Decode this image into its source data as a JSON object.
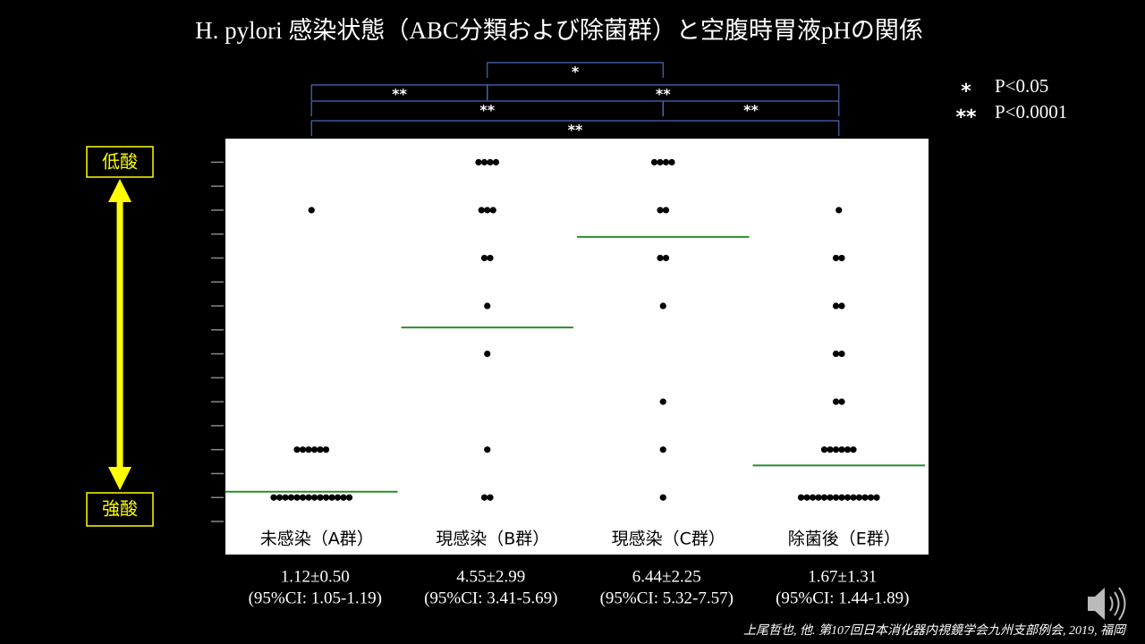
{
  "chart_data": {
    "type": "strip",
    "title": "H. pylori 感染状態（ABC分類および除菌群）と空腹時胃液pHの関係",
    "y_axis_labels": {
      "top": "低酸",
      "bottom": "強酸"
    },
    "ylim": [
      0.5,
      8.5
    ],
    "yticks": [
      0.5,
      1,
      1.5,
      2,
      2.5,
      3,
      3.5,
      4,
      4.5,
      5,
      5.5,
      6,
      6.5,
      7,
      7.5,
      8
    ],
    "point_color": "#000000",
    "mean_color": "#2e8b2e",
    "groups": [
      {
        "name": "未感染（A群）",
        "values": [
          7,
          2,
          2,
          2,
          2,
          2,
          2,
          1,
          1,
          1,
          1,
          1,
          1,
          1,
          1,
          1,
          1,
          1,
          1,
          1,
          1
        ],
        "mean": 1.12,
        "mean_label": "1.12±0.50",
        "ci_label": "(95%CI: 1.05-1.19)"
      },
      {
        "name": "現感染（B群）",
        "values": [
          8,
          8,
          8,
          8,
          7,
          7,
          7,
          6,
          6,
          5,
          4,
          2,
          1,
          1
        ],
        "mean": 4.55,
        "mean_label": "4.55±2.99",
        "ci_label": "(95%CI: 3.41-5.69)"
      },
      {
        "name": "現感染（C群）",
        "values": [
          8,
          8,
          8,
          8,
          7,
          7,
          6,
          6,
          5,
          3,
          2,
          1
        ],
        "mean": 6.44,
        "mean_label": "6.44±2.25",
        "ci_label": "(95%CI: 5.32-7.57)"
      },
      {
        "name": "除菌後（E群）",
        "values": [
          7,
          6,
          6,
          5,
          5,
          4,
          4,
          3,
          3,
          2,
          2,
          2,
          2,
          2,
          2,
          1,
          1,
          1,
          1,
          1,
          1,
          1,
          1,
          1,
          1,
          1,
          1,
          1,
          1
        ],
        "mean": 1.67,
        "mean_label": "1.67±1.31",
        "ci_label": "(95%CI: 1.44-1.89)"
      }
    ],
    "comparisons": [
      {
        "from": "未感染（A群）",
        "to": "除菌後（E群）",
        "label": "**"
      },
      {
        "from": "未感染（A群）",
        "to": "現感染（C群）",
        "label": "**"
      },
      {
        "from": "現感染（B群）",
        "to": "除菌後（E群）",
        "label": "**"
      },
      {
        "from": "未感染（A群）",
        "to": "現感染（B群）",
        "label": "**"
      },
      {
        "from": "現感染（B群）",
        "to": "現感染（C群）",
        "label": "*"
      },
      {
        "from": "現感染（C群）",
        "to": "除菌後（E群）",
        "label": "**"
      }
    ],
    "significance_legend": [
      {
        "symbol": "*",
        "label": "P<0.05"
      },
      {
        "symbol": "**",
        "label": "P<0.0001"
      }
    ],
    "citation": "上尾哲也, 他. 第107回日本消化器内視鏡学会九州支部例会, 2019, 福岡"
  }
}
